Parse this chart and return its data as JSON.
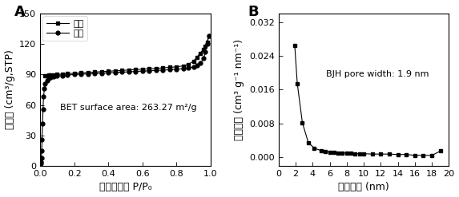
{
  "panel_A": {
    "label": "A",
    "xlabel": "相对压力， P/P₀",
    "ylabel": "吸附量 (cm³/g,STP)",
    "xlim": [
      0,
      1.0
    ],
    "ylim": [
      0,
      150
    ],
    "xticks": [
      0.0,
      0.2,
      0.4,
      0.6,
      0.8,
      1.0
    ],
    "yticks": [
      0,
      30,
      60,
      90,
      120,
      150
    ],
    "annotation": "BET surface area: 263.27 m²/g",
    "legend_desorption": "脱附",
    "legend_adsorption": "吸附",
    "adsorption_x": [
      0.003,
      0.005,
      0.007,
      0.009,
      0.011,
      0.014,
      0.017,
      0.02,
      0.025,
      0.03,
      0.04,
      0.05,
      0.06,
      0.08,
      0.1,
      0.13,
      0.16,
      0.2,
      0.24,
      0.28,
      0.32,
      0.36,
      0.4,
      0.44,
      0.48,
      0.52,
      0.56,
      0.6,
      0.64,
      0.68,
      0.72,
      0.76,
      0.8,
      0.84,
      0.87,
      0.9,
      0.92,
      0.94,
      0.96,
      0.97,
      0.98,
      0.99
    ],
    "adsorption_y": [
      2,
      4,
      8,
      15,
      26,
      42,
      56,
      68,
      76,
      81,
      84,
      86,
      87,
      88,
      88.5,
      89,
      89.5,
      90,
      90.3,
      90.6,
      91,
      91.3,
      91.6,
      92,
      92.3,
      92.6,
      93,
      93.3,
      93.6,
      94,
      94.3,
      94.7,
      95.2,
      95.8,
      96.5,
      97.5,
      99,
      101,
      106,
      112,
      120,
      128
    ],
    "desorption_x": [
      0.99,
      0.98,
      0.97,
      0.96,
      0.94,
      0.92,
      0.9,
      0.87,
      0.84,
      0.8,
      0.76,
      0.72,
      0.68,
      0.64,
      0.6,
      0.56,
      0.52,
      0.48,
      0.44,
      0.4,
      0.36,
      0.32,
      0.28,
      0.24,
      0.2,
      0.16,
      0.13,
      0.1,
      0.08,
      0.06,
      0.05,
      0.04,
      0.03
    ],
    "desorption_y": [
      128,
      122,
      118,
      115,
      111,
      107,
      103,
      100,
      98.5,
      97.5,
      97,
      96.5,
      96,
      95.6,
      95.2,
      94.8,
      94.4,
      94,
      93.6,
      93.2,
      92.8,
      92.4,
      92,
      91.6,
      91.2,
      90.8,
      90.4,
      90,
      89.7,
      89.5,
      89.2,
      88.8,
      88.5
    ]
  },
  "panel_B": {
    "label": "B",
    "xlabel": "孔隅直径 (nm)",
    "ylabel": "孔隅容积 (cm³ g⁻¹ nm⁻¹)",
    "xlim": [
      0,
      20
    ],
    "ylim": [
      -0.002,
      0.034
    ],
    "xticks": [
      0,
      2,
      4,
      6,
      8,
      10,
      12,
      14,
      16,
      18,
      20
    ],
    "yticks": [
      0.0,
      0.008,
      0.016,
      0.024,
      0.032
    ],
    "annotation": "BJH pore width: 1.9 nm",
    "x": [
      1.9,
      2.2,
      2.8,
      3.5,
      4.2,
      5.0,
      5.5,
      6.0,
      6.5,
      7.0,
      7.5,
      8.0,
      8.5,
      9.0,
      9.5,
      10.0,
      11.0,
      12.0,
      13.0,
      14.0,
      15.0,
      16.0,
      17.0,
      18.0,
      19.0
    ],
    "y": [
      0.0265,
      0.0175,
      0.0082,
      0.0035,
      0.0022,
      0.0016,
      0.0014,
      0.0013,
      0.0012,
      0.0011,
      0.0011,
      0.001,
      0.001,
      0.0009,
      0.0009,
      0.0009,
      0.0008,
      0.0008,
      0.0008,
      0.0007,
      0.0007,
      0.0005,
      0.0005,
      0.0005,
      0.0015
    ]
  },
  "figure_bg": "#ffffff",
  "axes_bg": "#ffffff",
  "line_color": "#000000",
  "marker_square": "s",
  "marker_circle": "o",
  "marker_size": 3.5,
  "font_size_label": 9,
  "font_size_tick": 8,
  "font_size_annotation": 8,
  "font_size_panel_label": 13
}
